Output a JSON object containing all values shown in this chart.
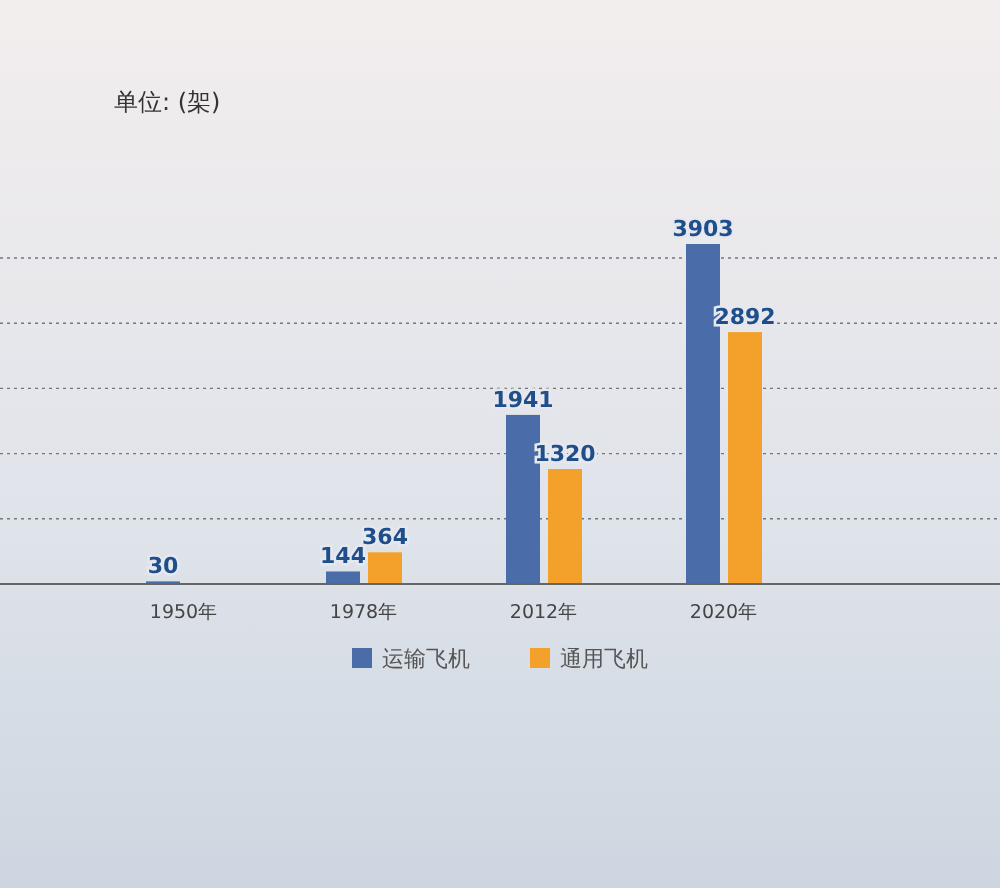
{
  "chart_data": {
    "type": "bar",
    "annotations": [
      "单位: (架)"
    ],
    "categories": [
      "1950年",
      "1978年",
      "2012年",
      "2020年"
    ],
    "series": [
      {
        "name": "运输飞机",
        "color": "#4a6ca8",
        "values": [
          30,
          144,
          1941,
          3903
        ]
      },
      {
        "name": "通用飞机",
        "color": "#f4a12c",
        "values": [
          null,
          364,
          1320,
          2892
        ]
      }
    ],
    "data_labels": true,
    "grid": "y",
    "legend": "bottom"
  }
}
